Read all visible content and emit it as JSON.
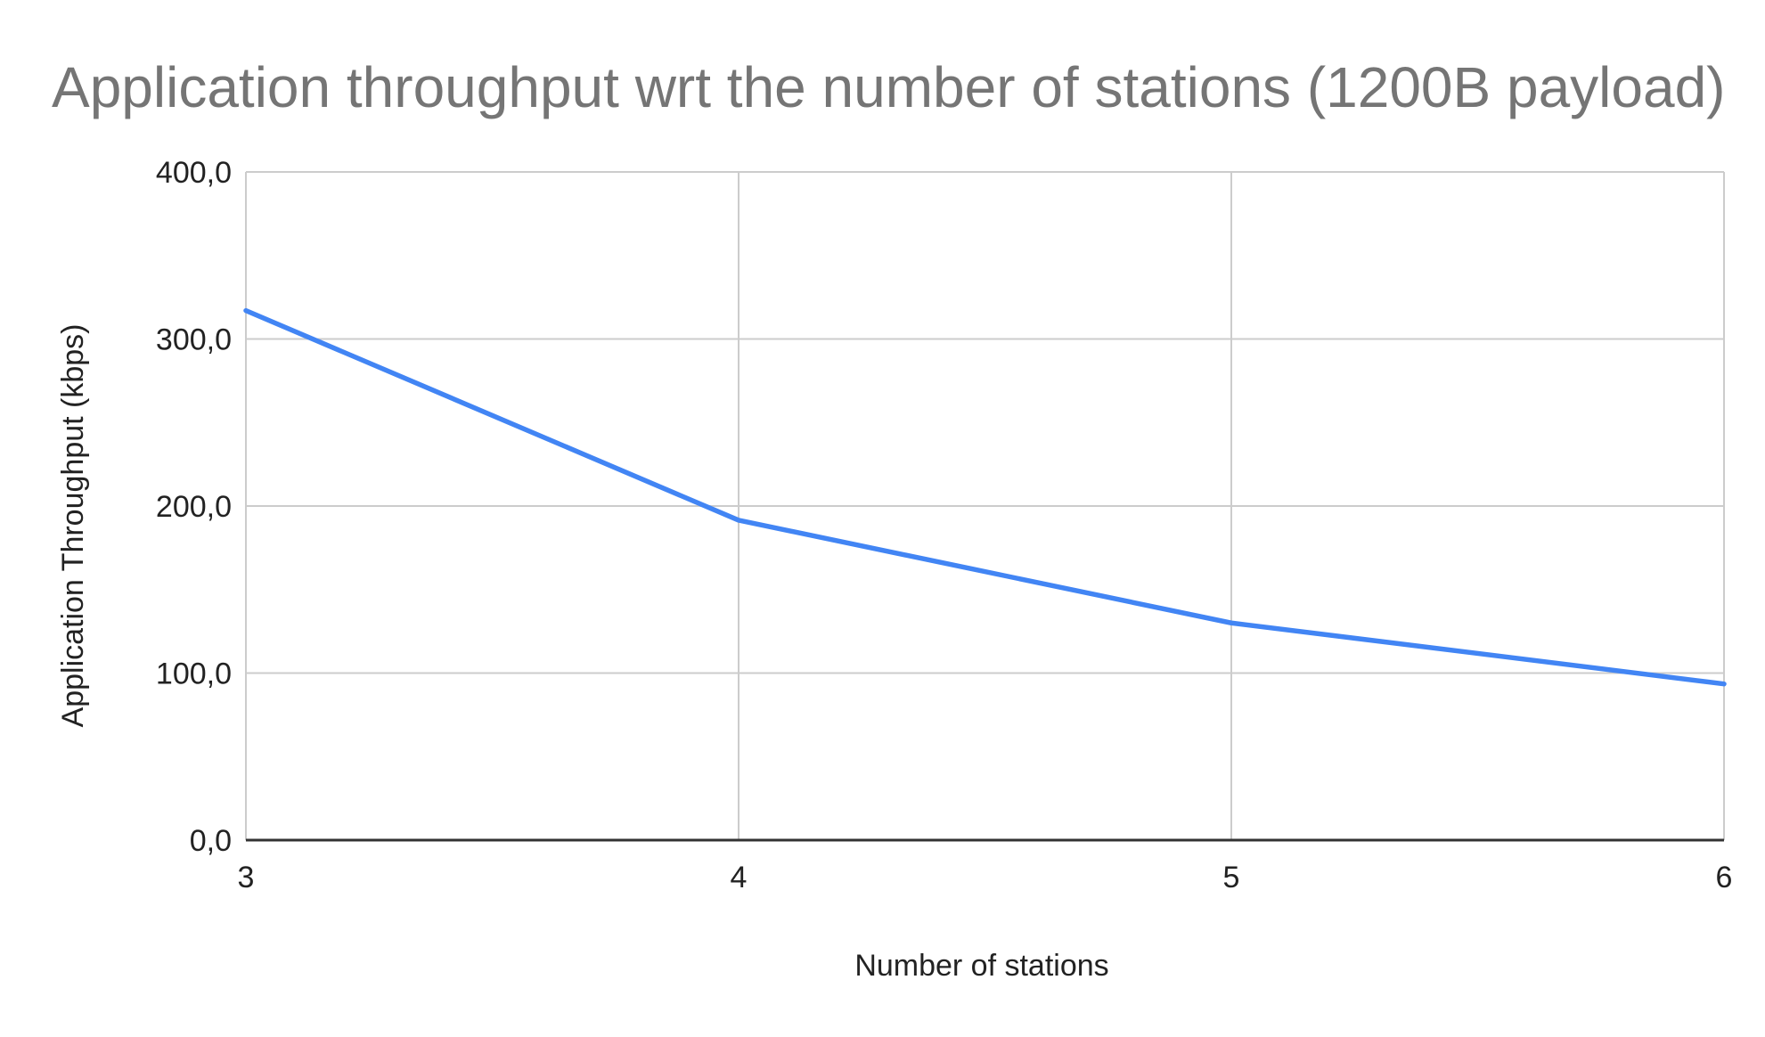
{
  "chart_data": {
    "type": "line",
    "title": "Application throughput wrt the number of stations (1200B payload)",
    "xlabel": "Number of stations",
    "ylabel": "Application Throughput (kbps)",
    "x": [
      3,
      4,
      5,
      6
    ],
    "x_tick_labels": [
      "3",
      "4",
      "5",
      "6"
    ],
    "series": [
      {
        "values": [
          317.0,
          191.5,
          130.0,
          93.5
        ],
        "color": "#4285f4"
      }
    ],
    "ylim": [
      0,
      400
    ],
    "xlim": [
      3,
      6
    ],
    "y_ticks": [
      0,
      100,
      200,
      300,
      400
    ],
    "y_tick_labels": [
      "0,0",
      "100,0",
      "200,0",
      "300,0",
      "400,0"
    ],
    "grid": true,
    "legend": "none"
  }
}
